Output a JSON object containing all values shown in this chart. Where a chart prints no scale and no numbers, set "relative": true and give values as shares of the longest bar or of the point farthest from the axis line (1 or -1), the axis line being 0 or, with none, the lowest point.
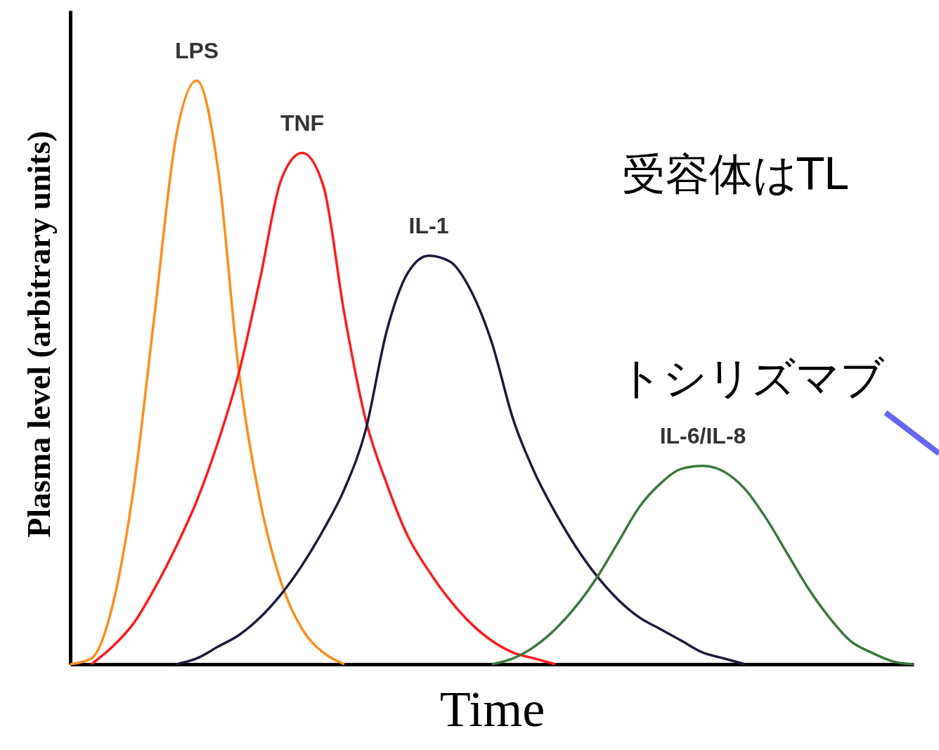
{
  "chart_data": {
    "type": "line",
    "relative": true,
    "xlabel": "Time",
    "ylabel": "Plasma level (arbitrary units)",
    "grid": false,
    "categories": [
      null,
      null,
      null,
      null,
      null,
      null,
      null,
      null,
      null,
      null,
      null,
      null,
      null,
      null,
      null,
      null,
      null,
      null,
      null,
      null,
      null,
      null,
      null,
      null,
      null,
      null,
      null,
      null,
      null,
      null,
      null,
      null,
      null,
      null,
      null,
      null,
      null,
      null,
      null,
      null,
      null
    ],
    "series": [
      {
        "name": "LPS",
        "color": "#ff8c1a",
        "values": [
          0,
          0.01,
          0.1,
          0.3,
          0.6,
          0.9,
          1.0,
          0.85,
          0.5,
          0.28,
          0.14,
          0.06,
          0.02,
          0,
          null,
          null,
          null,
          null,
          null,
          null,
          null,
          null,
          null,
          null,
          null,
          null,
          null,
          null,
          null,
          null,
          null,
          null,
          null,
          null,
          null,
          null,
          null,
          null,
          null,
          null,
          null
        ]
      },
      {
        "name": "TNF",
        "color": "#ff1a1a",
        "values": [
          null,
          0,
          0.03,
          0.07,
          0.13,
          0.2,
          0.28,
          0.38,
          0.5,
          0.66,
          0.83,
          0.876,
          0.82,
          0.6,
          0.42,
          0.31,
          0.22,
          0.16,
          0.11,
          0.07,
          0.04,
          0.02,
          0.01,
          0,
          null,
          null,
          null,
          null,
          null,
          null,
          null,
          null,
          null,
          null,
          null,
          null,
          null,
          null,
          null,
          null,
          null
        ]
      },
      {
        "name": "IL-1",
        "color": "#1a1a40",
        "values": [
          null,
          null,
          null,
          null,
          null,
          0,
          0.01,
          0.03,
          0.05,
          0.08,
          0.12,
          0.17,
          0.23,
          0.3,
          0.4,
          0.57,
          0.67,
          0.7,
          0.69,
          0.64,
          0.55,
          0.42,
          0.33,
          0.26,
          0.2,
          0.15,
          0.11,
          0.08,
          0.06,
          0.04,
          0.02,
          0.01,
          0,
          null,
          null,
          null,
          null,
          null,
          null,
          null,
          null
        ]
      },
      {
        "name": "IL-6/IL-8",
        "color": "#3a7a3a",
        "values": [
          null,
          null,
          null,
          null,
          null,
          null,
          null,
          null,
          null,
          null,
          null,
          null,
          null,
          null,
          null,
          null,
          null,
          null,
          null,
          null,
          0,
          0.01,
          0.03,
          0.06,
          0.1,
          0.15,
          0.21,
          0.27,
          0.31,
          0.335,
          0.34,
          0.33,
          0.3,
          0.25,
          0.19,
          0.13,
          0.08,
          0.04,
          0.02,
          0.005,
          0
        ]
      }
    ],
    "annotations": [
      "受容体はTL",
      "トシリズマブ"
    ]
  }
}
